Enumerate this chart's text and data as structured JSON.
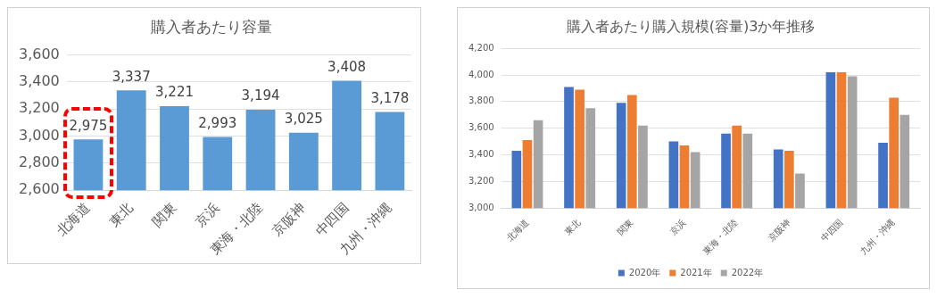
{
  "chart_data": [
    {
      "type": "bar",
      "title": "購入者あたり容量",
      "categories": [
        "北海道",
        "東北",
        "関東",
        "京浜",
        "東海・北陸",
        "京阪神",
        "中四国",
        "九州・沖縄"
      ],
      "values": [
        2975,
        3337,
        3221,
        2993,
        3194,
        3025,
        3408,
        3178
      ],
      "value_labels": [
        "2,975",
        "3,337",
        "3,221",
        "2,993",
        "3,194",
        "3,025",
        "3,408",
        "3,178"
      ],
      "color": "#5b9bd5",
      "ylim": [
        2600,
        3600
      ],
      "yticks": [
        {
          "value": 2600,
          "label": "2,600"
        },
        {
          "value": 2800,
          "label": "2,800"
        },
        {
          "value": 3000,
          "label": "3,000"
        },
        {
          "value": 3200,
          "label": "3,200"
        },
        {
          "value": 3400,
          "label": "3,400"
        },
        {
          "value": 3600,
          "label": "3,600"
        }
      ],
      "grid": "y",
      "legend": false
    },
    {
      "type": "bar",
      "title": "購入者あたり購入規模(容量)3か年推移",
      "categories": [
        "北海道",
        "東北",
        "関東",
        "京浜",
        "東海・北陸",
        "京阪神",
        "中四国",
        "九州・沖縄"
      ],
      "series": [
        {
          "name": "2020年",
          "color": "#4472c4",
          "values": [
            3430,
            3910,
            3790,
            3500,
            3560,
            3440,
            4020,
            3490
          ]
        },
        {
          "name": "2021年",
          "color": "#ed7d31",
          "values": [
            3510,
            3890,
            3850,
            3470,
            3620,
            3430,
            4020,
            3830
          ]
        },
        {
          "name": "2022年",
          "color": "#a5a5a5",
          "values": [
            3660,
            3750,
            3620,
            3420,
            3560,
            3260,
            3990,
            3700
          ]
        }
      ],
      "ylim": [
        3000,
        4200
      ],
      "yticks": [
        {
          "value": 3000,
          "label": "3,000"
        },
        {
          "value": 3200,
          "label": "3,200"
        },
        {
          "value": 3400,
          "label": "3,400"
        },
        {
          "value": 3600,
          "label": "3,600"
        },
        {
          "value": 3800,
          "label": "3,800"
        },
        {
          "value": 4000,
          "label": "4,000"
        },
        {
          "value": 4200,
          "label": "4,200"
        }
      ],
      "grid": "y",
      "legend": "bottom"
    }
  ]
}
